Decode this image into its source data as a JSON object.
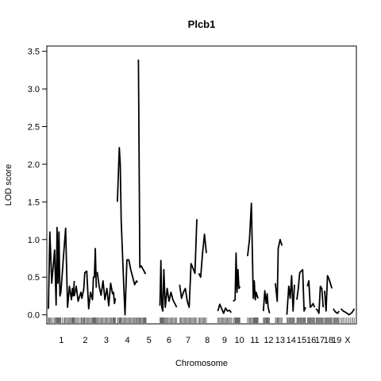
{
  "chart_data": {
    "type": "line",
    "title": "Plcb1",
    "xlabel": "Chromosome",
    "ylabel": "LOD score",
    "ylim": [
      -0.12,
      3.57
    ],
    "y_ticks": [
      0.0,
      0.5,
      1.0,
      1.5,
      2.0,
      2.5,
      3.0,
      3.5
    ],
    "y_tick_labels": [
      "0.0",
      "0.5",
      "1.0",
      "1.5",
      "2.0",
      "2.5",
      "3.0",
      "3.5"
    ],
    "grid": false,
    "legend": "none",
    "line_color": "#000000",
    "chromosomes": [
      {
        "name": "1",
        "label": "1",
        "range": [
          0,
          27
        ],
        "x": [
          0,
          1.5,
          3.5,
          6.5,
          8,
          9,
          10,
          11,
          12,
          13,
          16,
          18,
          20,
          22,
          24,
          25,
          26,
          27
        ],
        "y": [
          0.08,
          1.1,
          0.42,
          0.86,
          0.13,
          1.16,
          0.42,
          1.1,
          0.25,
          0.3,
          0.82,
          1.15,
          0.1,
          0.38,
          0.2,
          0.35,
          0.25,
          0.45
        ]
      },
      {
        "name": "2",
        "label": "2",
        "range": [
          27,
          50
        ],
        "x": [
          27,
          29,
          31,
          34,
          35,
          37,
          38,
          40,
          42,
          44,
          46,
          47,
          48,
          49,
          50
        ],
        "y": [
          0.25,
          0.38,
          0.18,
          0.3,
          0.22,
          0.35,
          0.56,
          0.58,
          0.08,
          0.3,
          0.2,
          0.5,
          0.5,
          0.88,
          0.36
        ]
      },
      {
        "name": "3",
        "label": "3",
        "range": [
          50,
          71
        ],
        "x": [
          51,
          53,
          55,
          57,
          59,
          61,
          63,
          65,
          67,
          68,
          69,
          70
        ],
        "y": [
          0.57,
          0.38,
          0.26,
          0.45,
          0.2,
          0.35,
          0.12,
          0.42,
          0.28,
          0.3,
          0.15,
          0.22
        ]
      },
      {
        "name": "4",
        "label": "4",
        "range": [
          71,
          94
        ],
        "x": [
          72,
          74,
          75,
          76,
          78,
          80,
          82,
          84,
          86,
          88,
          90,
          92,
          93
        ],
        "y": [
          1.5,
          2.22,
          2.0,
          1.25,
          0.6,
          0.0,
          0.73,
          0.73,
          0.6,
          0.5,
          0.4,
          0.45,
          0.43
        ]
      },
      {
        "name": "5",
        "label": "5",
        "range": [
          94,
          116
        ],
        "x": [
          94,
          95.5,
          97,
          99,
          100,
          101,
          102
        ],
        "y": [
          3.39,
          0.63,
          0.65,
          0.6,
          0.58,
          0.55,
          0.55
        ]
      },
      {
        "name": "6",
        "label": "6",
        "range": [
          116,
          136
        ],
        "x": [
          116.5,
          117.5,
          118.5,
          119.5,
          120.5,
          122,
          124,
          126,
          128,
          130,
          132,
          134
        ],
        "y": [
          0.12,
          0.72,
          0.1,
          0.05,
          0.6,
          0.1,
          0.35,
          0.18,
          0.3,
          0.2,
          0.15,
          0.1
        ]
      },
      {
        "name": "7",
        "label": "7",
        "range": [
          136,
          156
        ],
        "x": [
          137,
          139,
          141,
          143,
          145,
          147,
          149,
          151,
          153,
          155
        ],
        "y": [
          0.4,
          0.22,
          0.3,
          0.35,
          0.18,
          0.1,
          0.68,
          0.62,
          0.55,
          1.27
        ]
      },
      {
        "name": "8",
        "label": "8",
        "range": [
          156,
          176
        ],
        "x": [
          157,
          159,
          161,
          163,
          165
        ],
        "y": [
          0.55,
          0.5,
          0.82,
          1.07,
          0.82
        ]
      },
      {
        "name": "9",
        "label": "9",
        "range": [
          176,
          192
        ],
        "x": [
          177,
          179,
          181,
          183,
          185,
          187,
          189,
          191
        ],
        "y": [
          0.05,
          0.14,
          0.08,
          0.02,
          0.09,
          0.05,
          0.06,
          0.03
        ]
      },
      {
        "name": "10",
        "label": "10",
        "range": [
          192,
          207
        ],
        "x": [
          193,
          195,
          196,
          197,
          198,
          199,
          200
        ],
        "y": [
          0.18,
          0.2,
          0.82,
          0.3,
          0.6,
          0.35,
          0.38
        ]
      },
      {
        "name": "11",
        "label": "11",
        "range": [
          207,
          224
        ],
        "x": [
          208,
          210,
          212,
          214,
          215,
          216,
          217,
          218,
          219
        ],
        "y": [
          0.78,
          1.0,
          1.48,
          0.22,
          0.45,
          0.2,
          0.3,
          0.25,
          0.22
        ]
      },
      {
        "name": "12",
        "label": "12",
        "range": [
          224,
          236
        ],
        "x": [
          224.5,
          226,
          227.5,
          228.5,
          229.5,
          231
        ],
        "y": [
          0.05,
          0.32,
          0.15,
          0.28,
          0.1,
          0.02
        ]
      },
      {
        "name": "13",
        "label": "13",
        "range": [
          236,
          248
        ],
        "x": [
          237,
          239,
          240,
          242,
          244
        ],
        "y": [
          0.42,
          0.18,
          0.88,
          1.0,
          0.92
        ]
      },
      {
        "name": "14",
        "label": "14",
        "range": [
          248,
          259
        ],
        "x": [
          249,
          251,
          252.5,
          254,
          255.5,
          257
        ],
        "y": [
          0.0,
          0.38,
          0.22,
          0.52,
          0.05,
          0.4
        ]
      },
      {
        "name": "15",
        "label": "15",
        "range": [
          259,
          270
        ],
        "x": [
          259.5,
          261,
          262.5,
          264,
          265.5,
          267,
          268.5
        ],
        "y": [
          0.2,
          0.35,
          0.56,
          0.58,
          0.6,
          0.05,
          0.1
        ]
      },
      {
        "name": "16",
        "label": "16",
        "range": [
          270,
          279
        ],
        "x": [
          270.5,
          272,
          273.5,
          275,
          276.5,
          278
        ],
        "y": [
          0.38,
          0.45,
          0.1,
          0.12,
          0.15,
          0.1
        ]
      },
      {
        "name": "17",
        "label": "17",
        "range": [
          279,
          288
        ],
        "x": [
          279.5,
          281,
          282.5,
          284,
          285.5,
          287
        ],
        "y": [
          0.08,
          0.06,
          0.02,
          0.38,
          0.35,
          0.1
        ]
      },
      {
        "name": "18",
        "label": "18",
        "range": [
          288,
          297
        ],
        "x": [
          288.5,
          290,
          291.5,
          293,
          294.5,
          296
        ],
        "y": [
          0.32,
          0.05,
          0.52,
          0.48,
          0.42,
          0.35
        ]
      },
      {
        "name": "19",
        "label": "19",
        "range": [
          297,
          305
        ],
        "x": [
          297.5,
          299,
          300.5,
          302,
          303.5
        ],
        "y": [
          0.08,
          0.05,
          0.03,
          0.02,
          0.05
        ]
      },
      {
        "name": "X",
        "label": "X",
        "range": [
          305,
          320
        ],
        "x": [
          305.5,
          308,
          311,
          314,
          317,
          319.5
        ],
        "y": [
          0.08,
          0.05,
          0.03,
          0.0,
          0.03,
          0.08
        ]
      }
    ]
  }
}
